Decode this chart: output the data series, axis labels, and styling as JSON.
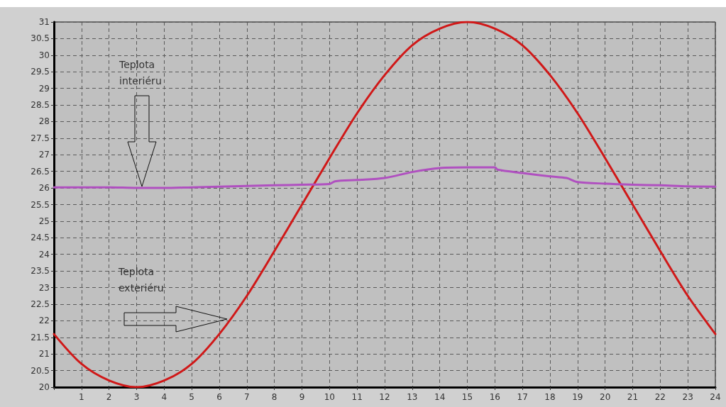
{
  "chart_data": {
    "type": "line",
    "series": [
      {
        "color": "#d01818",
        "x": [
          0,
          1,
          2,
          3,
          4,
          5,
          6,
          7,
          8,
          9,
          10,
          11,
          12,
          13,
          14,
          15,
          16,
          17,
          18,
          19,
          20,
          21,
          22,
          23,
          24
        ],
        "values": [
          21.6,
          20.7,
          20.2,
          20,
          20.2,
          20.7,
          21.6,
          22.75,
          24.1,
          25.5,
          26.9,
          28.25,
          29.4,
          30.3,
          30.8,
          31,
          30.8,
          30.3,
          29.4,
          28.25,
          26.9,
          25.5,
          24.1,
          22.75,
          21.6
        ]
      },
      {
        "color": "#b050c0",
        "x": [
          0,
          1,
          2,
          3,
          4,
          5,
          6,
          7,
          8,
          9,
          10,
          10.2,
          11,
          12,
          13,
          14,
          15,
          16,
          16.1,
          17,
          18,
          18.6,
          19,
          20,
          21,
          22,
          23,
          24
        ],
        "values": [
          26.02,
          26.02,
          26.02,
          26,
          26,
          26.02,
          26.04,
          26.06,
          26.08,
          26.1,
          26.12,
          26.2,
          26.24,
          26.3,
          26.48,
          26.6,
          26.62,
          26.62,
          26.55,
          26.45,
          26.35,
          26.3,
          26.18,
          26.13,
          26.1,
          26.08,
          26.05,
          26.04
        ]
      }
    ],
    "xlim": [
      0,
      24
    ],
    "xticks": [
      {
        "value": 0,
        "label": null
      },
      1,
      2,
      3,
      4,
      5,
      6,
      7,
      8,
      9,
      10,
      11,
      12,
      13,
      14,
      15,
      16,
      17,
      18,
      19,
      20,
      21,
      22,
      23,
      24
    ],
    "ylim": [
      20,
      31
    ],
    "yticks": [
      20,
      20.5,
      21,
      21.5,
      22,
      22.5,
      23,
      23.5,
      24,
      24.5,
      25,
      25.5,
      26,
      26.5,
      27,
      27.5,
      28,
      28.5,
      29,
      29.5,
      30,
      30.5,
      31
    ],
    "grid": true,
    "marker": "none",
    "line_style": "solid",
    "annotations": [
      "Teplota\ninteriéru",
      "Teplota\nexteriéru"
    ]
  }
}
